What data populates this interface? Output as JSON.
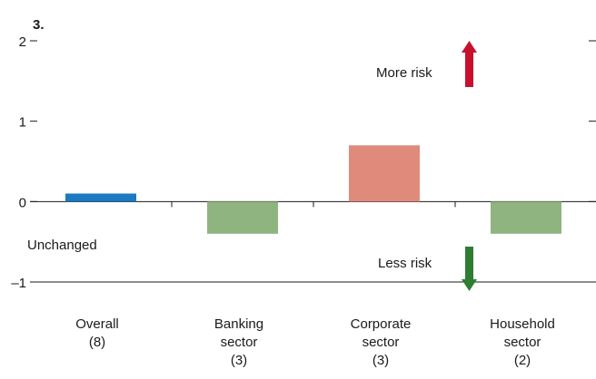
{
  "chart_data": {
    "type": "bar",
    "panel_label": "3.",
    "categories": [
      {
        "lines": [
          "Overall",
          "(8)"
        ]
      },
      {
        "lines": [
          "Banking",
          "sector",
          "(3)"
        ]
      },
      {
        "lines": [
          "Corporate",
          "sector",
          "(3)"
        ]
      },
      {
        "lines": [
          "Household",
          "sector",
          "(2)"
        ]
      }
    ],
    "values": [
      0.1,
      -0.4,
      0.7,
      -0.4
    ],
    "bar_colors": [
      "#1a7ac2",
      "#8fb480",
      "#e08a7c",
      "#8fb480"
    ],
    "ylim": [
      -1,
      2
    ],
    "yticks": [
      {
        "value": 2,
        "label": "2"
      },
      {
        "value": 1,
        "label": "1"
      },
      {
        "value": 0,
        "label": "0"
      },
      {
        "value": -1,
        "label": "–1"
      }
    ],
    "annotations": {
      "unchanged": "Unchanged",
      "more_risk": "More risk",
      "less_risk": "Less risk"
    },
    "arrow_colors": {
      "more_risk": "#c8102e",
      "less_risk": "#2e7d32"
    },
    "grid": false,
    "legend": "none"
  }
}
